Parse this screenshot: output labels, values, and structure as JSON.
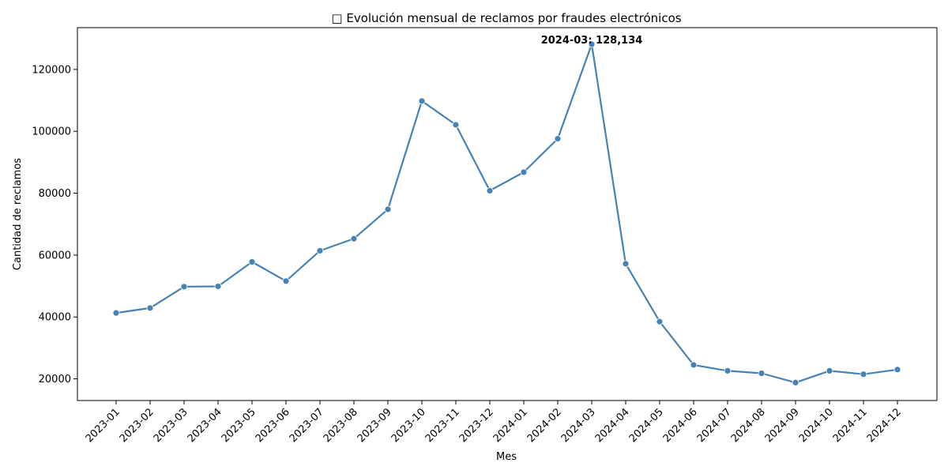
{
  "chart_data": {
    "type": "line",
    "title": "□ Evolución mensual de reclamos por fraudes electrónicos",
    "xlabel": "Mes",
    "ylabel": "Cantidad de reclamos",
    "ylim": [
      13000,
      133500
    ],
    "yticks": [
      20000,
      40000,
      60000,
      80000,
      100000,
      120000
    ],
    "grid": false,
    "legend": "none",
    "color": "#4682b4",
    "categories": [
      "2023-01",
      "2023-02",
      "2023-03",
      "2023-04",
      "2023-05",
      "2023-06",
      "2023-07",
      "2023-08",
      "2023-09",
      "2023-10",
      "2023-11",
      "2023-12",
      "2024-01",
      "2024-02",
      "2024-03",
      "2024-04",
      "2024-05",
      "2024-06",
      "2024-07",
      "2024-08",
      "2024-09",
      "2024-10",
      "2024-11",
      "2024-12"
    ],
    "values": [
      41300,
      42900,
      49800,
      49900,
      57800,
      51600,
      61400,
      65300,
      74800,
      109800,
      102100,
      80800,
      86800,
      97600,
      128134,
      57200,
      38500,
      24500,
      22600,
      21800,
      18800,
      22600,
      21500,
      23000
    ],
    "annotation": {
      "category": "2024-03",
      "value": 128134,
      "text": "2024-03: 128,134"
    }
  }
}
